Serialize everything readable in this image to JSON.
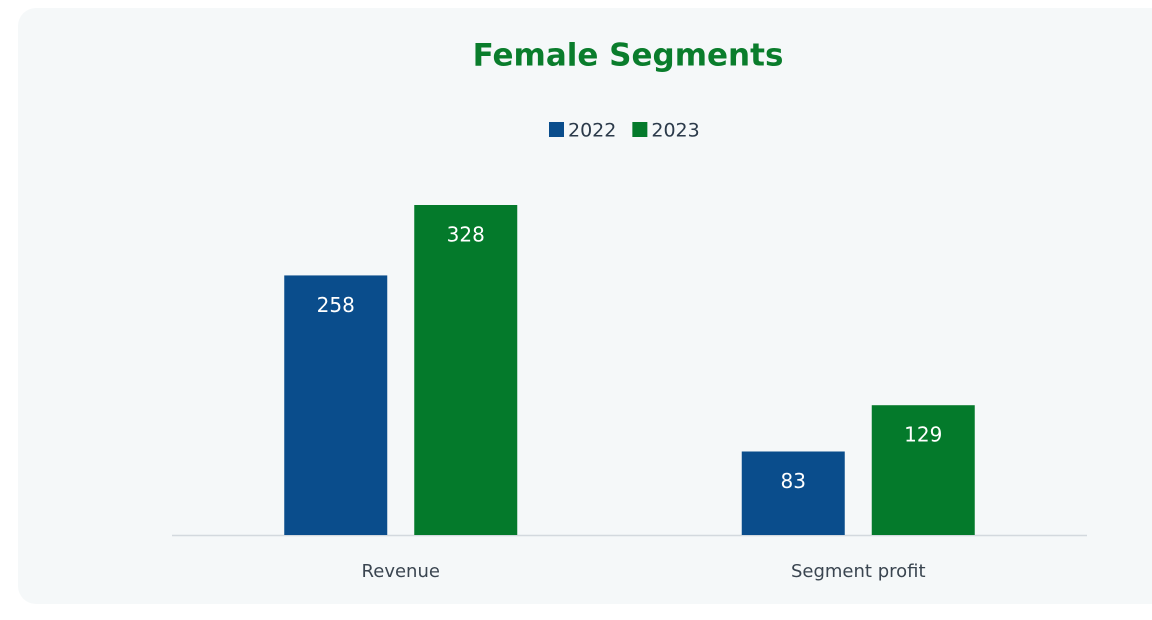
{
  "chart_data": {
    "type": "bar",
    "title": "Female Segments",
    "categories": [
      "Revenue",
      "Segment profit"
    ],
    "series": [
      {
        "name": "2022",
        "color": "#0a4d8c",
        "values": [
          258,
          83
        ]
      },
      {
        "name": "2023",
        "color": "#047a2b",
        "values": [
          328,
          129
        ]
      }
    ]
  }
}
